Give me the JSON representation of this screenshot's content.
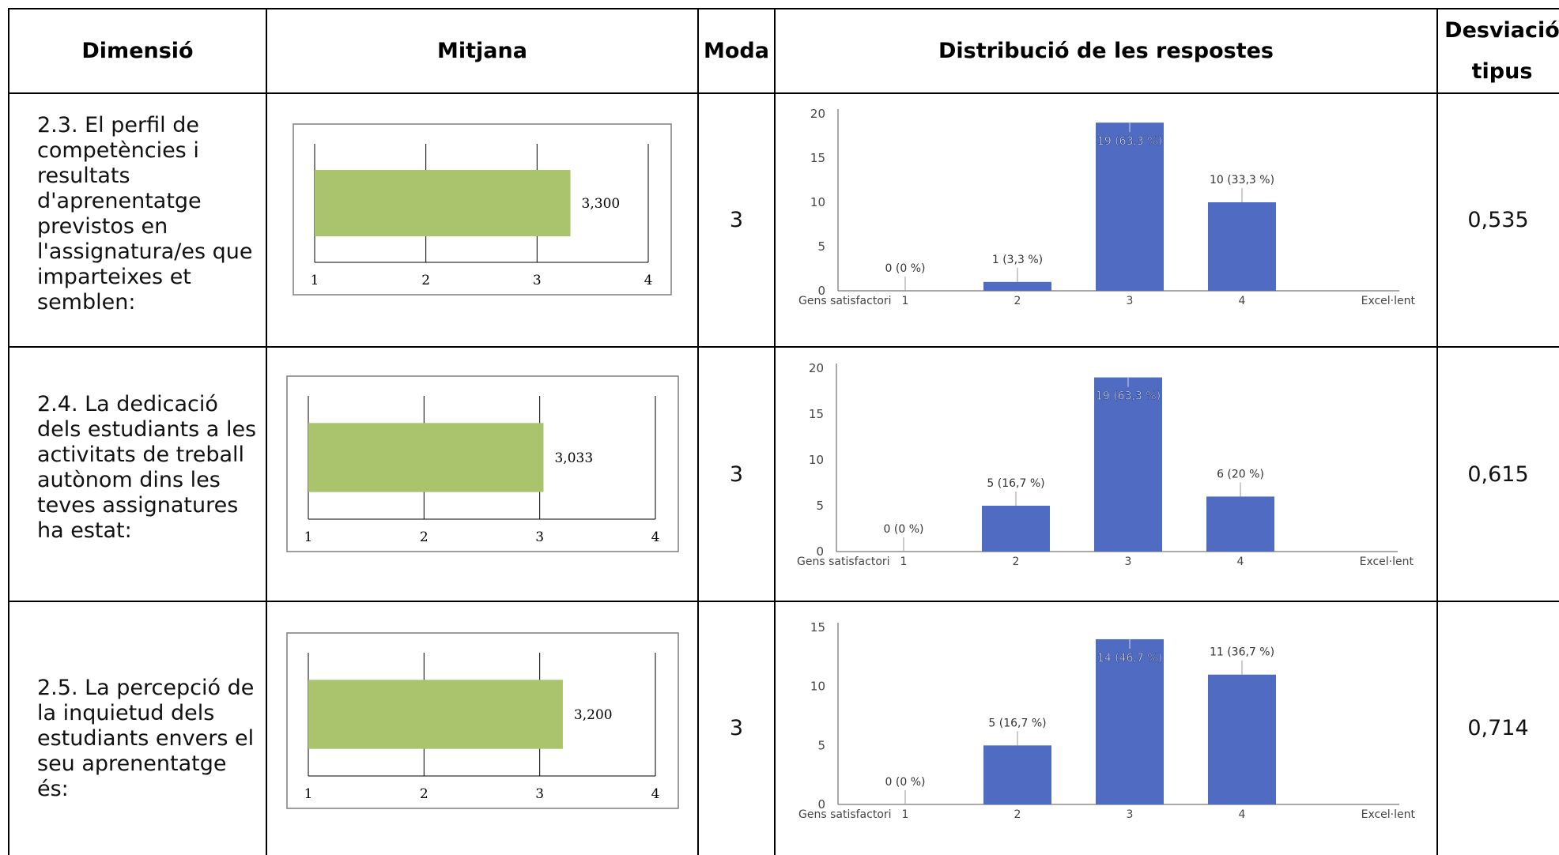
{
  "headers": {
    "dimension": "Dimensió",
    "mean": "Mitjana",
    "mode": "Moda",
    "distribution": "Distribució de les respostes",
    "std_line1": "Desviació",
    "std_line2": "tipus"
  },
  "rows": [
    {
      "dimension": "2.3.   El perfil de competències i resultats d'aprenentatge previstos en l'assignatura/es que imparteixes et semblen:",
      "mean": 3.3,
      "mean_label": "3,300",
      "mode": "3",
      "std": "0,535"
    },
    {
      "dimension": "2.4.   La dedicació dels estudiants a les activitats de treball autònom dins les teves assignatures ha estat:",
      "mean": 3.033,
      "mean_label": "3,033",
      "mode": "3",
      "std": "0,615"
    },
    {
      "dimension": "2.5.   La percepció de la inquietud dels estudiants envers el seu aprenentatge és:",
      "mean": 3.2,
      "mean_label": "3,200",
      "mode": "3",
      "std": "0,714"
    }
  ],
  "colors": {
    "mean_bar": "#a9c46c",
    "dist_bar": "#4f6bc2",
    "grid_line": "#000000"
  },
  "chart_data": [
    {
      "type": "bar",
      "orientation": "horizontal",
      "values": [
        3.3
      ],
      "data_labels": [
        "3,300"
      ],
      "xlim": [
        1,
        4
      ],
      "xticks": [
        "1",
        "2",
        "3",
        "4"
      ]
    },
    {
      "type": "bar",
      "categories": [
        "1",
        "2",
        "3",
        "4"
      ],
      "values": [
        0,
        1,
        19,
        10
      ],
      "data_labels": [
        "0 (0 %)",
        "1 (3,3 %)",
        "19 (63,3 %)",
        "10 (33,3 %)"
      ],
      "ylim": [
        0,
        20
      ],
      "yticks": [
        "0",
        "5",
        "10",
        "15",
        "20"
      ],
      "x_left_label": "Gens satisfactori",
      "x_right_label": "Excel·lent"
    },
    {
      "type": "bar",
      "orientation": "horizontal",
      "values": [
        3.033
      ],
      "data_labels": [
        "3,033"
      ],
      "xlim": [
        1,
        4
      ],
      "xticks": [
        "1",
        "2",
        "3",
        "4"
      ]
    },
    {
      "type": "bar",
      "categories": [
        "1",
        "2",
        "3",
        "4"
      ],
      "values": [
        0,
        5,
        19,
        6
      ],
      "data_labels": [
        "0 (0 %)",
        "5 (16,7 %)",
        "19 (63,3 %)",
        "6 (20 %)"
      ],
      "ylim": [
        0,
        20
      ],
      "yticks": [
        "0",
        "5",
        "10",
        "15",
        "20"
      ],
      "x_left_label": "Gens satisfactori",
      "x_right_label": "Excel·lent"
    },
    {
      "type": "bar",
      "orientation": "horizontal",
      "values": [
        3.2
      ],
      "data_labels": [
        "3,200"
      ],
      "xlim": [
        1,
        4
      ],
      "xticks": [
        "1",
        "2",
        "3",
        "4"
      ]
    },
    {
      "type": "bar",
      "categories": [
        "1",
        "2",
        "3",
        "4"
      ],
      "values": [
        0,
        5,
        14,
        11
      ],
      "data_labels": [
        "0 (0 %)",
        "5 (16,7 %)",
        "14 (46,7 %)",
        "11 (36,7 %)"
      ],
      "ylim": [
        0,
        15
      ],
      "yticks": [
        "0",
        "5",
        "10",
        "15"
      ],
      "x_left_label": "Gens satisfactori",
      "x_right_label": "Excel·lent"
    }
  ]
}
